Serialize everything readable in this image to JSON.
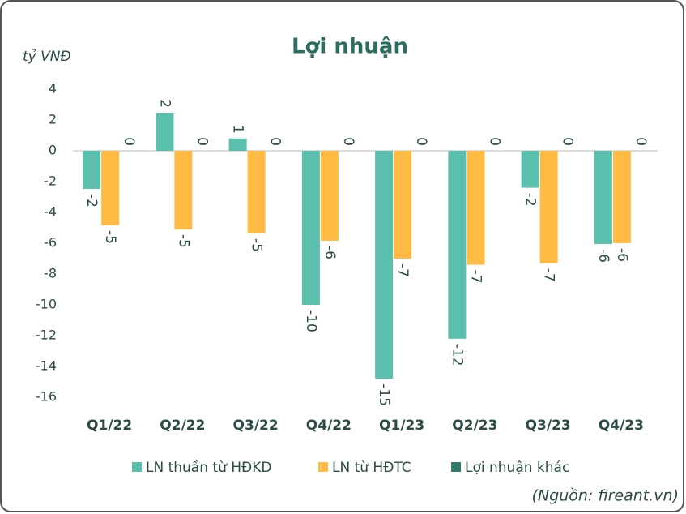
{
  "chart_data": {
    "type": "bar",
    "title": "Lợi nhuận",
    "y_label": "tỷ VNĐ",
    "source": "(Nguồn: fireant.vn)",
    "categories": [
      "Q1/22",
      "Q2/22",
      "Q3/22",
      "Q4/22",
      "Q1/23",
      "Q2/23",
      "Q3/23",
      "Q4/23"
    ],
    "series": [
      {
        "name": "LN thuần từ HĐKD",
        "color": "#5bbfae",
        "values": [
          -2.47,
          2.47,
          0.8,
          -10,
          -14.8,
          -12.2,
          -2.4,
          -6.05
        ],
        "value_labels": [
          "-2",
          "2",
          "1",
          "-10",
          "-15",
          "-12",
          "-2",
          "-6"
        ]
      },
      {
        "name": "LN từ HĐTC",
        "color": "#ffbb44",
        "values": [
          -4.84,
          -5.1,
          -5.37,
          -5.84,
          -7,
          -7.4,
          -7.3,
          -6
        ],
        "value_labels": [
          "-5",
          "-5",
          "-5",
          "-6",
          "-7",
          "-7",
          "-7",
          "-6"
        ]
      },
      {
        "name": "Lợi nhuận khác",
        "color": "#2e7a6b",
        "values": [
          0,
          0,
          0,
          0,
          0,
          0,
          0,
          0
        ],
        "value_labels": [
          "0",
          "0",
          "0",
          "0",
          "0",
          "0",
          "0",
          "0"
        ]
      }
    ],
    "ylim": [
      -16,
      4
    ],
    "yticks": [
      -16,
      -14,
      -12,
      -10,
      -8,
      -6,
      -4,
      -2,
      0,
      2,
      4
    ],
    "grid": false
  }
}
